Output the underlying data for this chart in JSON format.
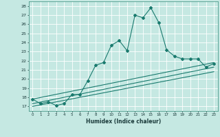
{
  "xlabel": "Humidex (Indice chaleur)",
  "xlim": [
    -0.5,
    23.5
  ],
  "ylim": [
    16.5,
    28.5
  ],
  "yticks": [
    17,
    18,
    19,
    20,
    21,
    22,
    23,
    24,
    25,
    26,
    27,
    28
  ],
  "xticks": [
    0,
    1,
    2,
    3,
    4,
    5,
    6,
    7,
    8,
    9,
    10,
    11,
    12,
    13,
    14,
    15,
    16,
    17,
    18,
    19,
    20,
    21,
    22,
    23
  ],
  "bg_color": "#c5e8e2",
  "grid_color": "#ffffff",
  "line_color": "#1a7a6e",
  "line1_x": [
    0,
    1,
    2,
    3,
    4,
    5,
    6,
    7,
    8,
    9,
    10,
    11,
    12,
    13,
    14,
    15,
    16,
    17,
    18,
    19,
    20,
    21,
    22,
    23
  ],
  "line1_y": [
    17.8,
    17.3,
    17.5,
    17.1,
    17.3,
    18.3,
    18.3,
    19.8,
    21.5,
    21.8,
    23.7,
    24.2,
    23.1,
    27.0,
    26.7,
    27.8,
    26.2,
    23.2,
    22.5,
    22.2,
    22.2,
    22.2,
    21.3,
    21.7
  ],
  "line2_x": [
    0,
    23
  ],
  "line2_y": [
    17.8,
    21.8
  ],
  "line3_x": [
    0,
    23
  ],
  "line3_y": [
    17.3,
    21.3
  ],
  "line4_x": [
    0,
    23
  ],
  "line4_y": [
    17.0,
    20.8
  ]
}
